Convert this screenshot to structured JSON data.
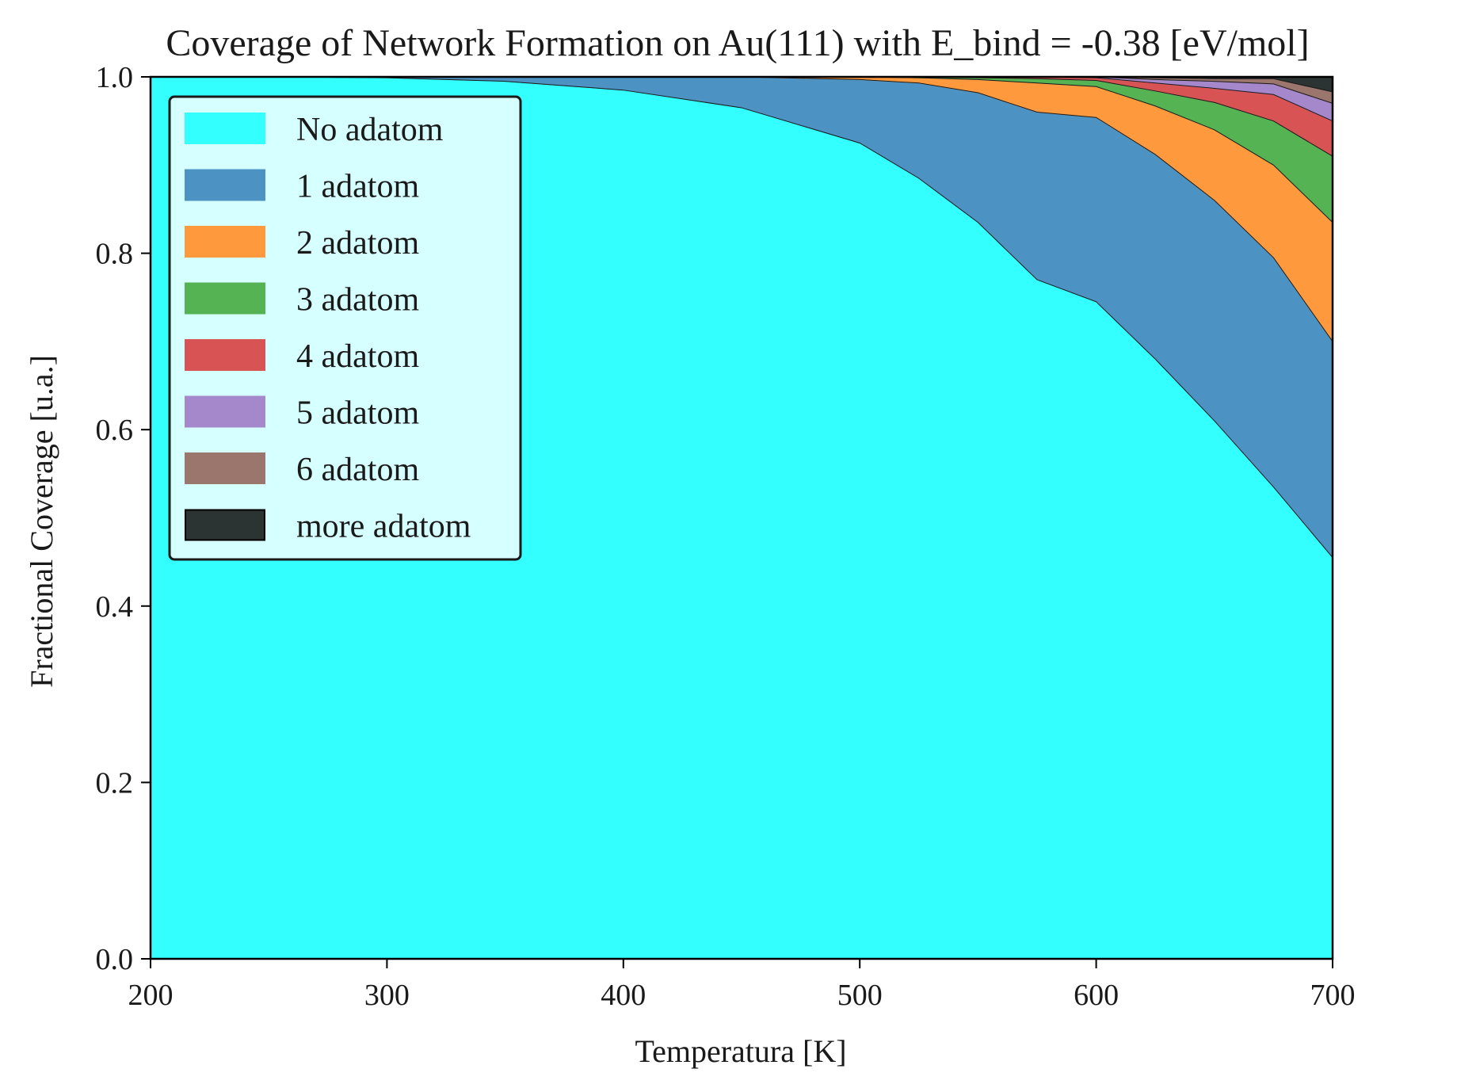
{
  "chart_data": {
    "type": "area",
    "stacked": true,
    "title": "Coverage of Network Formation on Au(111) with E_bind = -0.38 [eV/mol]",
    "xlabel": "Temperatura [K]",
    "ylabel": "Fractional Coverage [u.a.]",
    "xlim": [
      200,
      700
    ],
    "ylim": [
      0.0,
      1.0
    ],
    "x_ticks": [
      200,
      300,
      400,
      500,
      600,
      700
    ],
    "y_ticks": [
      0.0,
      0.2,
      0.4,
      0.6,
      0.8,
      1.0
    ],
    "x_tick_labels": [
      "200",
      "300",
      "400",
      "500",
      "600",
      "700"
    ],
    "y_tick_labels": [
      "0.0",
      "0.2",
      "0.4",
      "0.6",
      "0.8",
      "1.0"
    ],
    "grid": false,
    "legend_position": "upper-left",
    "x": [
      200,
      250,
      300,
      350,
      400,
      450,
      500,
      525,
      550,
      575,
      600,
      625,
      650,
      675,
      700
    ],
    "series": [
      {
        "name": "No adatom",
        "color": "#33ffff",
        "values": [
          1.0,
          1.0,
          0.999,
          0.995,
          0.985,
          0.965,
          0.925,
          0.885,
          0.835,
          0.77,
          0.745,
          0.68,
          0.61,
          0.535,
          0.455
        ]
      },
      {
        "name": "1 adatom",
        "color": "#4c92c3",
        "values": [
          0.0,
          0.0,
          0.001,
          0.005,
          0.015,
          0.035,
          0.072,
          0.108,
          0.147,
          0.19,
          0.209,
          0.232,
          0.25,
          0.26,
          0.245
        ]
      },
      {
        "name": "2 adatom",
        "color": "#ff993e",
        "values": [
          0.0,
          0.0,
          0.0,
          0.0,
          0.0,
          0.0,
          0.003,
          0.006,
          0.015,
          0.033,
          0.035,
          0.055,
          0.08,
          0.105,
          0.135
        ]
      },
      {
        "name": "3 adatom",
        "color": "#55b354",
        "values": [
          0.0,
          0.0,
          0.0,
          0.0,
          0.0,
          0.0,
          0.0,
          0.001,
          0.002,
          0.005,
          0.007,
          0.017,
          0.031,
          0.05,
          0.075
        ]
      },
      {
        "name": "4 adatom",
        "color": "#d75354",
        "values": [
          0.0,
          0.0,
          0.0,
          0.0,
          0.0,
          0.0,
          0.0,
          0.0,
          0.001,
          0.002,
          0.003,
          0.009,
          0.016,
          0.03,
          0.04
        ]
      },
      {
        "name": "5 adatom",
        "color": "#a587cb",
        "values": [
          0.0,
          0.0,
          0.0,
          0.0,
          0.0,
          0.0,
          0.0,
          0.0,
          0.0,
          0.0,
          0.001,
          0.004,
          0.008,
          0.012,
          0.02
        ]
      },
      {
        "name": "6 adatom",
        "color": "#9b766d",
        "values": [
          0.0,
          0.0,
          0.0,
          0.0,
          0.0,
          0.0,
          0.0,
          0.0,
          0.0,
          0.0,
          0.0,
          0.002,
          0.003,
          0.006,
          0.013
        ]
      },
      {
        "name": "more adatom",
        "color": "#2b3333",
        "values": [
          0.0,
          0.0,
          0.0,
          0.0,
          0.0,
          0.0,
          0.0,
          0.0,
          0.0,
          0.0,
          0.0,
          0.001,
          0.002,
          0.002,
          0.017
        ]
      }
    ]
  }
}
